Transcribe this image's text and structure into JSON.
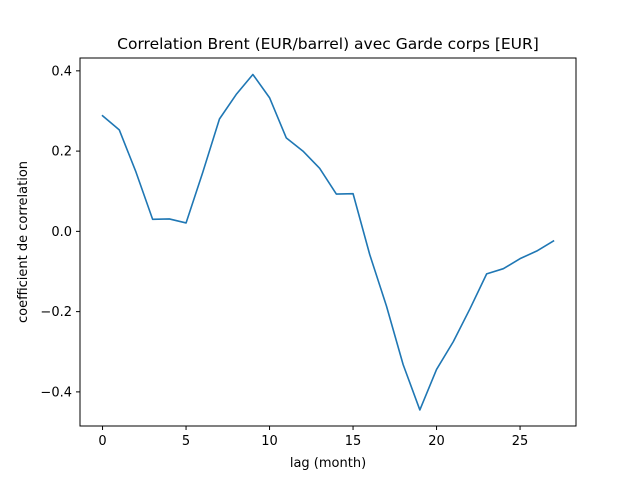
{
  "chart_data": {
    "type": "line",
    "title": "Correlation Brent (EUR/barrel) avec Garde corps [EUR]",
    "xlabel": "lag (month)",
    "ylabel": "coefficient de correlation",
    "xlim": [
      -1.35,
      28.35
    ],
    "ylim": [
      -0.485,
      0.432
    ],
    "xticks": [
      0,
      5,
      10,
      15,
      20,
      25
    ],
    "xtick_labels": [
      "0",
      "5",
      "10",
      "15",
      "20",
      "25"
    ],
    "yticks": [
      -0.4,
      -0.2,
      0.0,
      0.2,
      0.4
    ],
    "ytick_labels": [
      "−0.4",
      "−0.2",
      "0.0",
      "0.2",
      "0.4"
    ],
    "grid": false,
    "series": [
      {
        "color": "#1f77b4",
        "x": [
          0,
          1,
          2,
          3,
          4,
          5,
          6,
          7,
          8,
          9,
          10,
          11,
          12,
          13,
          14,
          15,
          16,
          17,
          18,
          19,
          20,
          21,
          22,
          23,
          24,
          25,
          26,
          27
        ],
        "y": [
          0.288,
          0.253,
          0.148,
          0.03,
          0.031,
          0.021,
          0.147,
          0.28,
          0.341,
          0.391,
          0.333,
          0.233,
          0.2,
          0.157,
          0.093,
          0.094,
          -0.058,
          -0.186,
          -0.332,
          -0.445,
          -0.344,
          -0.275,
          -0.193,
          -0.106,
          -0.093,
          -0.068,
          -0.049,
          -0.024
        ]
      }
    ]
  }
}
